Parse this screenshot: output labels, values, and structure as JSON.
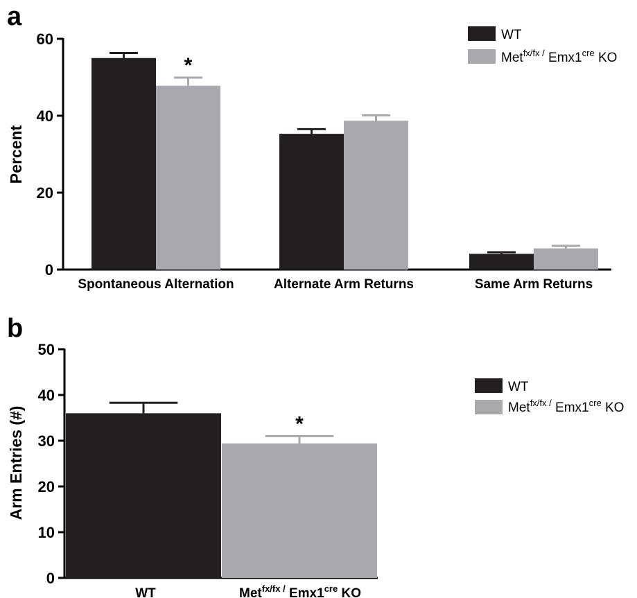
{
  "colors": {
    "wt": "#231f20",
    "ko": "#a7a9ac",
    "axis": "#000000"
  },
  "legend": {
    "wt_label": "WT",
    "ko_base": "Met",
    "ko_sup1": "fx/fx /",
    "ko_mid": " Emx1",
    "ko_sup2": "cre",
    "ko_end": " KO"
  },
  "chart_data": [
    {
      "panel": "a",
      "type": "bar",
      "ylabel": "Percent",
      "ylim": [
        0,
        60
      ],
      "yticks": [
        "0",
        "20",
        "40",
        "60"
      ],
      "categories": [
        "Spontaneous Alternation",
        "Alternate Arm Returns",
        "Same Arm Returns"
      ],
      "series": [
        {
          "name": "WT",
          "values": [
            55,
            35.3,
            4.1
          ],
          "errors": [
            1.3,
            1.2,
            0.4
          ]
        },
        {
          "name": "Met fx/fx / Emx1 cre KO",
          "values": [
            47.8,
            38.7,
            5.5
          ],
          "errors": [
            2.1,
            1.4,
            0.7
          ]
        }
      ],
      "significance": [
        {
          "category": 0,
          "series": 1,
          "mark": "*"
        }
      ]
    },
    {
      "panel": "b",
      "type": "bar",
      "ylabel": "Arm Entries (#)",
      "ylim": [
        0,
        50
      ],
      "yticks": [
        "0",
        "10",
        "20",
        "30",
        "40",
        "50"
      ],
      "categories": [
        "WT",
        "Met fx/fx / Emx1 cre KO"
      ],
      "series": [
        {
          "name": "Arm Entries",
          "values": [
            36,
            29.4
          ],
          "errors": [
            2.3,
            1.6
          ]
        }
      ],
      "significance": [
        {
          "category": 1,
          "series": 0,
          "mark": "*"
        }
      ]
    }
  ]
}
